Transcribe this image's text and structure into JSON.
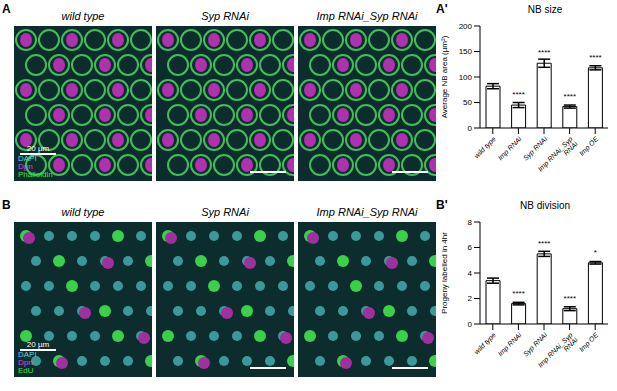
{
  "image_rows": [
    {
      "panel": "A",
      "channels": [
        {
          "label": "DAPI",
          "color": "#4fd6e0"
        },
        {
          "label": "Dpn",
          "color": "#e040e0"
        },
        {
          "label": "Phalloidin",
          "color": "#40e040"
        }
      ],
      "images": [
        {
          "title": "wild type",
          "scale_bar": "20 µm"
        },
        {
          "title": "Syp RNAi"
        },
        {
          "title": "Imp RNAi_Syp RNAi"
        }
      ]
    },
    {
      "panel": "B",
      "channels": [
        {
          "label": "DAPI",
          "color": "#4fd6e0"
        },
        {
          "label": "Dpn",
          "color": "#e040e0"
        },
        {
          "label": "EdU",
          "color": "#40e040"
        }
      ],
      "images": [
        {
          "title": "wild type",
          "scale_bar": "20 µm"
        },
        {
          "title": "Syp RNAi"
        },
        {
          "title": "Imp RNAi_Syp RNAi"
        }
      ]
    }
  ],
  "chart_data": [
    {
      "type": "bar",
      "panel": "A'",
      "title": "NB size",
      "y_label": "Average NB area (µm²)",
      "categories": [
        "wild type",
        "Imp RNAi",
        "Syp RNAi",
        "Imp RNAi_Syp RNAi",
        "Imp OE"
      ],
      "values": [
        82,
        45,
        127,
        42,
        118
      ],
      "errors": [
        5,
        5,
        8,
        3,
        4
      ],
      "annotations": [
        null,
        "****",
        "****",
        "****",
        "****"
      ],
      "color": "#ffffff",
      "ylim": [
        0,
        200
      ],
      "yticks": [
        0,
        50,
        100,
        150,
        200
      ]
    },
    {
      "type": "bar",
      "panel": "B'",
      "title": "NB division",
      "y_label": "Progeny labelled in 4hr",
      "categories": [
        "wild type",
        "Imp RNAi",
        "Syp RNAi",
        "Imp RNAi_Syp RNAi",
        "Imp OE"
      ],
      "values": [
        3.4,
        1.6,
        5.5,
        1.2,
        4.8
      ],
      "errors": [
        0.2,
        0.1,
        0.2,
        0.15,
        0.1
      ],
      "annotations": [
        null,
        "****",
        "****",
        "****",
        "*"
      ],
      "color": "#ffffff",
      "ylim": [
        0,
        8
      ],
      "yticks": [
        0,
        2,
        4,
        6,
        8
      ]
    }
  ]
}
